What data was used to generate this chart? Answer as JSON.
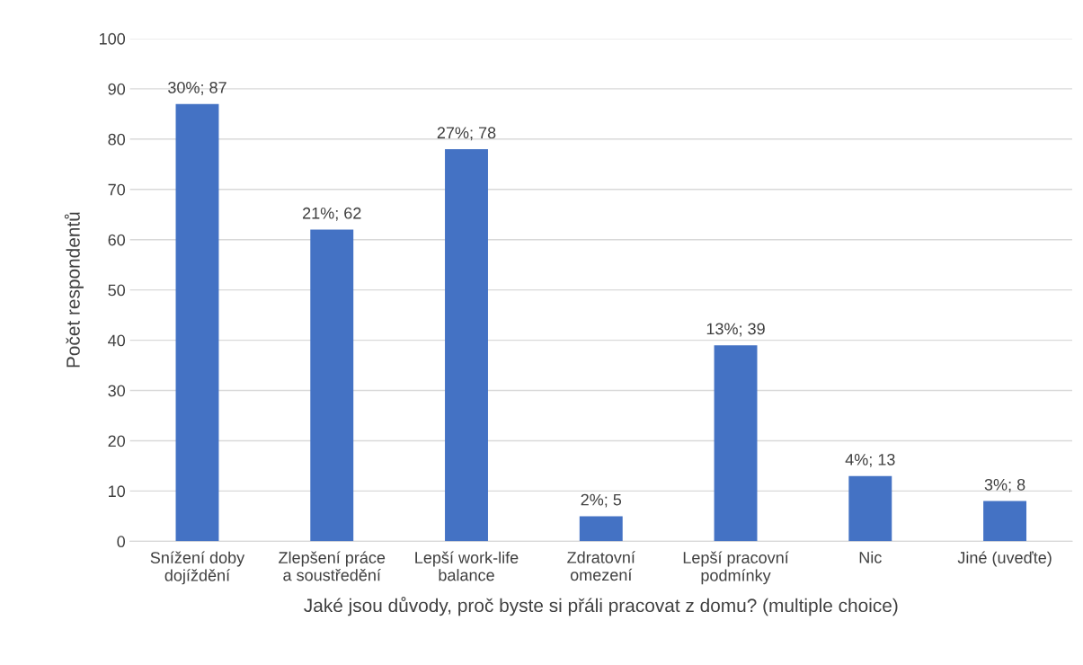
{
  "chart_data": {
    "type": "bar",
    "xlabel": "Jaké jsou důvody, proč byste si přáli pracovat z domu? (multiple choice)",
    "ylabel": "Počet respondentů",
    "categories": [
      "Snížení doby\ndojíždění",
      "Zlepšení práce\na soustředění",
      "Lepší work-life\nbalance",
      "Zdratovní\nomezení",
      "Lepší pracovní\npodmínky",
      "Nic",
      "Jiné (uveďte)"
    ],
    "values": [
      87,
      62,
      78,
      5,
      39,
      13,
      8
    ],
    "value_labels": [
      "30%; 87",
      "21%; 62",
      "27%; 78",
      "2%; 5",
      "13%; 39",
      "4%; 13",
      "3%; 8"
    ],
    "color": "#4472c4",
    "ylim": [
      0,
      100
    ],
    "yticks": [
      0,
      10,
      20,
      30,
      40,
      50,
      60,
      70,
      80,
      90,
      100
    ],
    "grid": "y",
    "legend": false
  }
}
